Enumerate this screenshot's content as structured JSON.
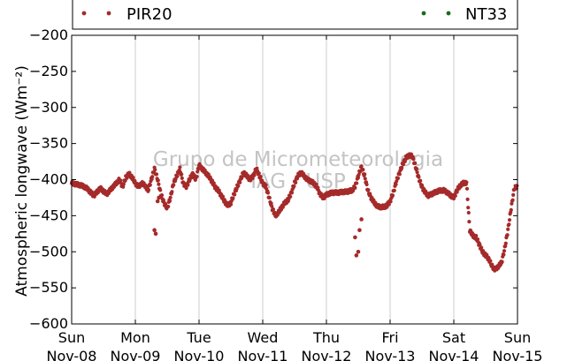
{
  "chart_data": {
    "type": "scatter",
    "ylabel": "Atmospheric longwave (Wm⁻²)",
    "ylim": [
      -600,
      -200
    ],
    "yticks": [
      -200,
      -250,
      -300,
      -350,
      -400,
      -450,
      -500,
      -550,
      -600
    ],
    "ytick_labels": [
      "−200",
      "−250",
      "−300",
      "−350",
      "−400",
      "−450",
      "−500",
      "−550",
      "−600"
    ],
    "xlim": [
      "2015-11-08",
      "2015-11-15"
    ],
    "xtick_labels": [
      [
        "Sun",
        "Nov-08"
      ],
      [
        "Mon",
        "Nov-09"
      ],
      [
        "Tue",
        "Nov-10"
      ],
      [
        "Wed",
        "Nov-11"
      ],
      [
        "Thu",
        "Nov-12"
      ],
      [
        "Fri",
        "Nov-13"
      ],
      [
        "Sat",
        "Nov-14"
      ],
      [
        "Sun",
        "Nov-15"
      ]
    ],
    "grid": "vertical",
    "legend": {
      "placement": "top",
      "entries": [
        "PIR20",
        "NT33"
      ]
    },
    "watermark": [
      "Grupo de Micrometeorologia",
      "IAG / USP"
    ],
    "series": [
      {
        "name": "PIR20",
        "color": "#a52a2a",
        "x": [
          0,
          0.05,
          0.1,
          0.15,
          0.2,
          0.25,
          0.3,
          0.35,
          0.4,
          0.45,
          0.5,
          0.55,
          0.6,
          0.65,
          0.7,
          0.75,
          0.8,
          0.85,
          0.9,
          0.95,
          1.0,
          1.05,
          1.1,
          1.15,
          1.2,
          1.25,
          1.3,
          1.35,
          1.4,
          1.45,
          1.5,
          1.55,
          1.6,
          1.65,
          1.7,
          1.75,
          1.8,
          1.85,
          1.9,
          1.95,
          2.0,
          2.05,
          2.1,
          2.15,
          2.2,
          2.25,
          2.3,
          2.35,
          2.4,
          2.45,
          2.5,
          2.55,
          2.6,
          2.65,
          2.7,
          2.75,
          2.8,
          2.85,
          2.9,
          2.95,
          3.0,
          3.05,
          3.1,
          3.15,
          3.2,
          3.25,
          3.3,
          3.35,
          3.4,
          3.45,
          3.5,
          3.55,
          3.6,
          3.65,
          3.7,
          3.75,
          3.8,
          3.85,
          3.9,
          3.95,
          4.0,
          4.05,
          4.1,
          4.15,
          4.2,
          4.25,
          4.3,
          4.35,
          4.4,
          4.45,
          4.5,
          4.55,
          4.6,
          4.65,
          4.7,
          4.75,
          4.8,
          4.85,
          4.9,
          4.95,
          5.0,
          5.05,
          5.1,
          5.15,
          5.2,
          5.25,
          5.3,
          5.35,
          5.4,
          5.45,
          5.5,
          5.55,
          5.6,
          5.65,
          5.7,
          5.75,
          5.8,
          5.85,
          5.9,
          5.95,
          6.0,
          6.05,
          6.1,
          6.15,
          6.2,
          6.25,
          6.3,
          6.35,
          6.4,
          6.45,
          6.5,
          6.55,
          6.6,
          6.65,
          6.7,
          6.75,
          6.8,
          6.85,
          6.9,
          6.95,
          7.0,
          1.3,
          1.32,
          1.35,
          1.37,
          4.45,
          4.47,
          4.5,
          4.52,
          4.55
        ],
        "y": [
          -405,
          -406,
          -407,
          -408,
          -410,
          -413,
          -418,
          -422,
          -417,
          -412,
          -416,
          -420,
          -415,
          -410,
          -405,
          -400,
          -410,
          -397,
          -392,
          -397,
          -405,
          -410,
          -405,
          -408,
          -415,
          -400,
          -385,
          -400,
          -420,
          -432,
          -440,
          -425,
          -405,
          -395,
          -385,
          -405,
          -410,
          -400,
          -392,
          -400,
          -380,
          -385,
          -390,
          -395,
          -402,
          -410,
          -415,
          -422,
          -430,
          -436,
          -432,
          -420,
          -410,
          -400,
          -390,
          -395,
          -400,
          -395,
          -385,
          -395,
          -405,
          -410,
          -425,
          -440,
          -450,
          -445,
          -438,
          -432,
          -428,
          -418,
          -405,
          -395,
          -390,
          -395,
          -400,
          -402,
          -405,
          -410,
          -420,
          -425,
          -421,
          -419,
          -418,
          -418,
          -418,
          -417,
          -417,
          -416,
          -415,
          -410,
          -395,
          -382,
          -395,
          -415,
          -425,
          -432,
          -437,
          -438,
          -438,
          -436,
          -430,
          -418,
          -402,
          -390,
          -378,
          -370,
          -366,
          -368,
          -382,
          -398,
          -410,
          -418,
          -422,
          -420,
          -418,
          -416,
          -415,
          -415,
          -418,
          -422,
          -425,
          -415,
          -408,
          -405,
          -404,
          -470,
          -478,
          -480,
          -490,
          -500,
          -505,
          -510,
          -520,
          -525,
          -520,
          -515,
          -495,
          -470,
          -440,
          -412,
          -409,
          -470,
          -475,
          -430,
          -425,
          -480,
          -505,
          -500,
          -470,
          -455
        ],
        "notes_omitted": false
      },
      {
        "name": "NT33",
        "color": "#1a6b1a",
        "x": [],
        "y": []
      }
    ]
  }
}
